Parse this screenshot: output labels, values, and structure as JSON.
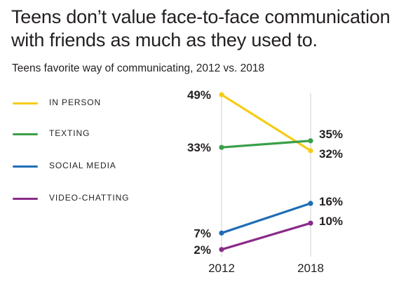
{
  "header": {
    "title": "Teens don’t value face-to-face communication with friends as much as they used to.",
    "subtitle": "Teens favorite way of communicating, 2012 vs. 2018"
  },
  "chart_data": {
    "type": "line",
    "x": [
      "2012",
      "2018"
    ],
    "ylim": [
      0,
      50
    ],
    "grid": false,
    "legend_position": "left",
    "series": [
      {
        "name": "IN PERSON",
        "values": [
          49,
          32
        ],
        "labels": [
          "49%",
          "32%"
        ],
        "color": "#f5cc17"
      },
      {
        "name": "TEXTING",
        "values": [
          33,
          35
        ],
        "labels": [
          "33%",
          "35%"
        ],
        "color": "#3a9f48"
      },
      {
        "name": "SOCIAL MEDIA",
        "values": [
          7,
          16
        ],
        "labels": [
          "7%",
          "16%"
        ],
        "color": "#1f6db5"
      },
      {
        "name": "VIDEO-CHATTING",
        "values": [
          2,
          10
        ],
        "labels": [
          "2%",
          "10%"
        ],
        "color": "#8a2b8a"
      }
    ]
  }
}
